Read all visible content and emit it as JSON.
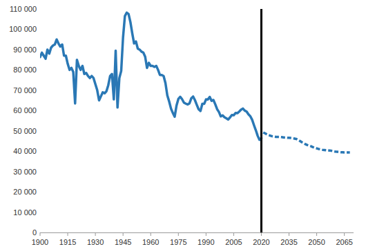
{
  "chart_data": {
    "type": "line",
    "xlim": [
      1900,
      2070
    ],
    "ylim": [
      0,
      110000
    ],
    "xticks": [
      1900,
      1915,
      1930,
      1945,
      1960,
      1975,
      1990,
      2005,
      2020,
      2035,
      2050,
      2065
    ],
    "yticks": [
      0,
      {
        "value": 10000,
        "label": "10 000"
      },
      {
        "value": 20000,
        "label": "20 000"
      },
      {
        "value": 30000,
        "label": "30 000"
      },
      {
        "value": 40000,
        "label": "40 000"
      },
      {
        "value": 50000,
        "label": "50 000"
      },
      {
        "value": 60000,
        "label": "60 000"
      },
      {
        "value": 70000,
        "label": "70 000"
      },
      {
        "value": 80000,
        "label": "80 000"
      },
      {
        "value": 90000,
        "label": "90 000"
      },
      {
        "value": 100000,
        "label": "100 000"
      },
      {
        "value": 110000,
        "label": "110 000"
      }
    ],
    "grid": false,
    "vline": 2020,
    "series": [
      {
        "color": "#2a78b5",
        "line_style": "solid",
        "x": [
          1900,
          1901,
          1902,
          1903,
          1904,
          1905,
          1906,
          1907,
          1908,
          1909,
          1910,
          1911,
          1912,
          1913,
          1914,
          1915,
          1916,
          1917,
          1918,
          1919,
          1920,
          1921,
          1922,
          1923,
          1924,
          1925,
          1926,
          1927,
          1928,
          1929,
          1930,
          1931,
          1932,
          1933,
          1934,
          1935,
          1936,
          1937,
          1938,
          1939,
          1940,
          1941,
          1942,
          1943,
          1944,
          1945,
          1946,
          1947,
          1948,
          1949,
          1950,
          1951,
          1952,
          1953,
          1954,
          1955,
          1956,
          1957,
          1958,
          1959,
          1960,
          1961,
          1962,
          1963,
          1964,
          1965,
          1966,
          1967,
          1968,
          1969,
          1970,
          1971,
          1972,
          1973,
          1974,
          1975,
          1976,
          1977,
          1978,
          1979,
          1980,
          1981,
          1982,
          1983,
          1984,
          1985,
          1986,
          1987,
          1988,
          1989,
          1990,
          1991,
          1992,
          1993,
          1994,
          1995,
          1996,
          1997,
          1998,
          1999,
          2000,
          2001,
          2002,
          2003,
          2004,
          2005,
          2006,
          2007,
          2008,
          2009,
          2010,
          2011,
          2012,
          2013,
          2014,
          2015,
          2016,
          2017,
          2018,
          2019,
          2020
        ],
        "values": [
          86300,
          88500,
          87000,
          85500,
          90000,
          88000,
          91000,
          92000,
          92500,
          95000,
          93000,
          91500,
          92500,
          87000,
          87000,
          83000,
          80000,
          81000,
          79000,
          63500,
          85000,
          82000,
          80000,
          82000,
          78000,
          78500,
          77000,
          76000,
          77000,
          76000,
          73000,
          70000,
          65000,
          67000,
          69000,
          68500,
          69500,
          72500,
          77000,
          78000,
          65500,
          89500,
          61500,
          76000,
          79500,
          96000,
          106500,
          108200,
          107500,
          103500,
          98000,
          93000,
          94000,
          90500,
          90000,
          89000,
          88500,
          86500,
          81000,
          83500,
          82000,
          82000,
          81500,
          82000,
          80000,
          77500,
          77500,
          77000,
          73500,
          67500,
          64500,
          61000,
          58800,
          57000,
          62500,
          65700,
          66800,
          65600,
          63900,
          63400,
          63000,
          63500,
          66000,
          66900,
          65100,
          62800,
          60600,
          59800,
          63300,
          63300,
          65500,
          65400,
          66700,
          64800,
          65200,
          63100,
          60700,
          59300,
          57100,
          57600,
          56700,
          56200,
          55600,
          56600,
          57800,
          57700,
          58800,
          58700,
          59500,
          60400,
          60980,
          59960,
          59500,
          58130,
          57230,
          55470,
          52810,
          50320,
          47580,
          45610,
          46460
        ]
      },
      {
        "color": "#2a78b5",
        "line_style": "dashed",
        "x": [
          2021,
          2022,
          2023,
          2024,
          2025,
          2026,
          2027,
          2028,
          2029,
          2030,
          2031,
          2032,
          2033,
          2034,
          2035,
          2036,
          2037,
          2038,
          2039,
          2040,
          2041,
          2042,
          2043,
          2044,
          2045,
          2046,
          2047,
          2048,
          2049,
          2050,
          2051,
          2052,
          2053,
          2054,
          2055,
          2056,
          2057,
          2058,
          2059,
          2060,
          2061,
          2062,
          2063,
          2064,
          2065,
          2066,
          2067,
          2068
        ],
        "values": [
          49200,
          48800,
          48300,
          47900,
          47600,
          47300,
          47100,
          47000,
          47000,
          47000,
          46900,
          46800,
          46700,
          46600,
          46600,
          46500,
          46400,
          46200,
          46000,
          45500,
          45000,
          44400,
          43900,
          43400,
          43000,
          42700,
          42400,
          42000,
          41700,
          41400,
          41100,
          40900,
          40700,
          40600,
          40500,
          40400,
          40300,
          40200,
          40000,
          39800,
          39700,
          39600,
          39500,
          39500,
          39400,
          39400,
          39400,
          39400
        ]
      }
    ]
  }
}
